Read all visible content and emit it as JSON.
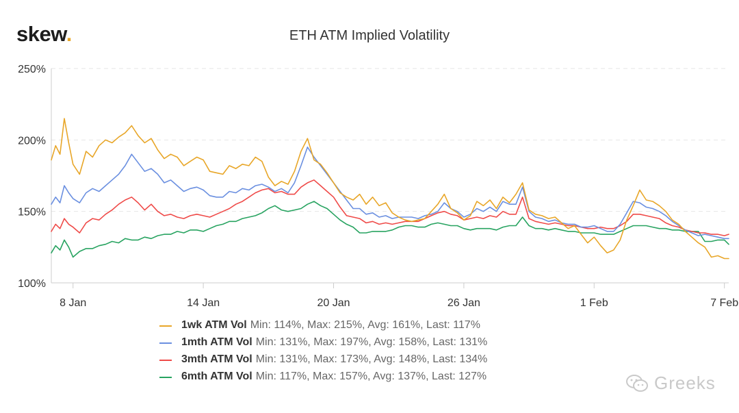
{
  "logo": {
    "text": "skew",
    "dot": "."
  },
  "watermark": {
    "text": "Greeks",
    "icon": "wechat-icon"
  },
  "chart_data": {
    "type": "line",
    "title": "ETH ATM Implied Volatility",
    "xlabel": "",
    "ylabel": "",
    "ylim": [
      100,
      250
    ],
    "yticks": [
      "100%",
      "150%",
      "200%",
      "250%"
    ],
    "ytick_values": [
      100,
      150,
      200,
      250
    ],
    "xticks": [
      "8 Jan",
      "14 Jan",
      "20 Jan",
      "26 Jan",
      "1 Feb",
      "7 Feb"
    ],
    "xtick_values": [
      0,
      6,
      12,
      18,
      24,
      30
    ],
    "xlim": [
      -1.0,
      30.2
    ],
    "x_unit": "days since 8 Jan",
    "grid": "horizontal dashed",
    "legend_position": "bottom",
    "series": [
      {
        "name": "1wk ATM Vol",
        "color": "#e8a628",
        "stats": "Min: 114%, Max: 215%, Avg: 161%, Last: 117%",
        "x": [
          -1.0,
          -0.8,
          -0.6,
          -0.4,
          -0.2,
          0.0,
          0.3,
          0.6,
          0.9,
          1.2,
          1.5,
          1.8,
          2.1,
          2.4,
          2.7,
          3.0,
          3.3,
          3.6,
          3.9,
          4.2,
          4.5,
          4.8,
          5.1,
          5.4,
          5.7,
          6.0,
          6.3,
          6.6,
          6.9,
          7.2,
          7.5,
          7.8,
          8.1,
          8.4,
          8.7,
          9.0,
          9.3,
          9.6,
          9.9,
          10.2,
          10.5,
          10.8,
          11.1,
          11.4,
          11.7,
          12.0,
          12.3,
          12.6,
          12.9,
          13.2,
          13.5,
          13.8,
          14.1,
          14.4,
          14.7,
          15.0,
          15.3,
          15.6,
          15.9,
          16.2,
          16.5,
          16.8,
          17.1,
          17.4,
          17.7,
          18.0,
          18.3,
          18.6,
          18.9,
          19.2,
          19.5,
          19.8,
          20.1,
          20.4,
          20.7,
          21.0,
          21.3,
          21.6,
          21.9,
          22.2,
          22.5,
          22.8,
          23.1,
          23.4,
          23.7,
          24.0,
          24.3,
          24.6,
          24.9,
          25.2,
          25.5,
          25.8,
          26.1,
          26.4,
          26.7,
          27.0,
          27.3,
          27.6,
          27.9,
          28.2,
          28.5,
          28.8,
          29.1,
          29.4,
          29.7,
          30.0,
          30.2
        ],
        "y": [
          186,
          196,
          190,
          215,
          198,
          183,
          176,
          192,
          188,
          196,
          200,
          198,
          202,
          205,
          210,
          203,
          198,
          201,
          193,
          187,
          190,
          188,
          182,
          185,
          188,
          186,
          178,
          177,
          176,
          182,
          180,
          183,
          182,
          188,
          185,
          174,
          168,
          171,
          169,
          178,
          192,
          201,
          186,
          183,
          177,
          170,
          163,
          160,
          158,
          162,
          155,
          160,
          154,
          156,
          149,
          146,
          144,
          143,
          144,
          145,
          150,
          155,
          162,
          152,
          149,
          144,
          147,
          157,
          154,
          158,
          152,
          160,
          156,
          162,
          170,
          151,
          148,
          147,
          145,
          146,
          142,
          138,
          140,
          134,
          128,
          132,
          126,
          121,
          123,
          130,
          144,
          154,
          165,
          158,
          157,
          154,
          150,
          144,
          141,
          136,
          132,
          128,
          125,
          118,
          119,
          117,
          117
        ]
      },
      {
        "name": "1mth ATM Vol",
        "color": "#6a8fe0",
        "stats": "Min: 131%, Max: 197%, Avg: 158%, Last: 131%",
        "x": [
          -1.0,
          -0.8,
          -0.6,
          -0.4,
          -0.2,
          0.0,
          0.3,
          0.6,
          0.9,
          1.2,
          1.5,
          1.8,
          2.1,
          2.4,
          2.7,
          3.0,
          3.3,
          3.6,
          3.9,
          4.2,
          4.5,
          4.8,
          5.1,
          5.4,
          5.7,
          6.0,
          6.3,
          6.6,
          6.9,
          7.2,
          7.5,
          7.8,
          8.1,
          8.4,
          8.7,
          9.0,
          9.3,
          9.6,
          9.9,
          10.2,
          10.5,
          10.8,
          11.1,
          11.4,
          11.7,
          12.0,
          12.3,
          12.6,
          12.9,
          13.2,
          13.5,
          13.8,
          14.1,
          14.4,
          14.7,
          15.0,
          15.3,
          15.6,
          15.9,
          16.2,
          16.5,
          16.8,
          17.1,
          17.4,
          17.7,
          18.0,
          18.3,
          18.6,
          18.9,
          19.2,
          19.5,
          19.8,
          20.1,
          20.4,
          20.7,
          21.0,
          21.3,
          21.6,
          21.9,
          22.2,
          22.5,
          22.8,
          23.1,
          23.4,
          23.7,
          24.0,
          24.3,
          24.6,
          24.9,
          25.2,
          25.5,
          25.8,
          26.1,
          26.4,
          26.7,
          27.0,
          27.3,
          27.6,
          27.9,
          28.2,
          28.5,
          28.8,
          29.1,
          29.4,
          29.7,
          30.0,
          30.2
        ],
        "y": [
          155,
          160,
          156,
          168,
          163,
          159,
          156,
          163,
          166,
          164,
          168,
          172,
          176,
          182,
          190,
          184,
          178,
          180,
          176,
          170,
          172,
          168,
          164,
          166,
          167,
          165,
          161,
          160,
          160,
          164,
          163,
          166,
          165,
          168,
          169,
          167,
          164,
          166,
          163,
          170,
          182,
          195,
          188,
          182,
          176,
          170,
          164,
          158,
          152,
          152,
          148,
          149,
          146,
          147,
          145,
          146,
          146,
          146,
          145,
          147,
          148,
          150,
          156,
          152,
          150,
          146,
          148,
          152,
          150,
          153,
          150,
          157,
          155,
          155,
          167,
          150,
          146,
          145,
          143,
          144,
          142,
          141,
          141,
          139,
          139,
          140,
          138,
          136,
          136,
          141,
          149,
          157,
          156,
          153,
          152,
          150,
          147,
          143,
          140,
          137,
          135,
          133,
          134,
          133,
          132,
          131,
          131
        ]
      },
      {
        "name": "3mth ATM Vol",
        "color": "#ef4a48",
        "stats": "Min: 131%, Max: 173%, Avg: 148%, Last: 134%",
        "x": [
          -1.0,
          -0.8,
          -0.6,
          -0.4,
          -0.2,
          0.0,
          0.3,
          0.6,
          0.9,
          1.2,
          1.5,
          1.8,
          2.1,
          2.4,
          2.7,
          3.0,
          3.3,
          3.6,
          3.9,
          4.2,
          4.5,
          4.8,
          5.1,
          5.4,
          5.7,
          6.0,
          6.3,
          6.6,
          6.9,
          7.2,
          7.5,
          7.8,
          8.1,
          8.4,
          8.7,
          9.0,
          9.3,
          9.6,
          9.9,
          10.2,
          10.5,
          10.8,
          11.1,
          11.4,
          11.7,
          12.0,
          12.3,
          12.6,
          12.9,
          13.2,
          13.5,
          13.8,
          14.1,
          14.4,
          14.7,
          15.0,
          15.3,
          15.6,
          15.9,
          16.2,
          16.5,
          16.8,
          17.1,
          17.4,
          17.7,
          18.0,
          18.3,
          18.6,
          18.9,
          19.2,
          19.5,
          19.8,
          20.1,
          20.4,
          20.7,
          21.0,
          21.3,
          21.6,
          21.9,
          22.2,
          22.5,
          22.8,
          23.1,
          23.4,
          23.7,
          24.0,
          24.3,
          24.6,
          24.9,
          25.2,
          25.5,
          25.8,
          26.1,
          26.4,
          26.7,
          27.0,
          27.3,
          27.6,
          27.9,
          28.2,
          28.5,
          28.8,
          29.1,
          29.4,
          29.7,
          30.0,
          30.2
        ],
        "y": [
          136,
          141,
          138,
          145,
          141,
          139,
          135,
          142,
          145,
          144,
          148,
          151,
          155,
          158,
          160,
          156,
          151,
          155,
          150,
          147,
          148,
          146,
          145,
          147,
          148,
          147,
          146,
          148,
          150,
          152,
          155,
          157,
          160,
          163,
          165,
          166,
          163,
          164,
          162,
          162,
          167,
          170,
          172,
          168,
          164,
          160,
          153,
          147,
          146,
          145,
          142,
          143,
          141,
          142,
          141,
          142,
          143,
          143,
          143,
          145,
          147,
          149,
          150,
          148,
          147,
          144,
          145,
          146,
          145,
          147,
          146,
          150,
          148,
          148,
          160,
          145,
          143,
          142,
          141,
          142,
          141,
          140,
          140,
          139,
          138,
          138,
          139,
          138,
          138,
          140,
          143,
          148,
          148,
          147,
          146,
          145,
          142,
          140,
          139,
          137,
          136,
          135,
          135,
          134,
          134,
          133,
          134
        ]
      },
      {
        "name": "6mth ATM Vol",
        "color": "#27a360",
        "stats": "Min: 117%, Max: 157%, Avg: 137%, Last: 127%",
        "x": [
          -1.0,
          -0.8,
          -0.6,
          -0.4,
          -0.2,
          0.0,
          0.3,
          0.6,
          0.9,
          1.2,
          1.5,
          1.8,
          2.1,
          2.4,
          2.7,
          3.0,
          3.3,
          3.6,
          3.9,
          4.2,
          4.5,
          4.8,
          5.1,
          5.4,
          5.7,
          6.0,
          6.3,
          6.6,
          6.9,
          7.2,
          7.5,
          7.8,
          8.1,
          8.4,
          8.7,
          9.0,
          9.3,
          9.6,
          9.9,
          10.2,
          10.5,
          10.8,
          11.1,
          11.4,
          11.7,
          12.0,
          12.3,
          12.6,
          12.9,
          13.2,
          13.5,
          13.8,
          14.1,
          14.4,
          14.7,
          15.0,
          15.3,
          15.6,
          15.9,
          16.2,
          16.5,
          16.8,
          17.1,
          17.4,
          17.7,
          18.0,
          18.3,
          18.6,
          18.9,
          19.2,
          19.5,
          19.8,
          20.1,
          20.4,
          20.7,
          21.0,
          21.3,
          21.6,
          21.9,
          22.2,
          22.5,
          22.8,
          23.1,
          23.4,
          23.7,
          24.0,
          24.3,
          24.6,
          24.9,
          25.2,
          25.5,
          25.8,
          26.1,
          26.4,
          26.7,
          27.0,
          27.3,
          27.6,
          27.9,
          28.2,
          28.5,
          28.8,
          29.1,
          29.4,
          29.7,
          30.0,
          30.2
        ],
        "y": [
          121,
          126,
          123,
          130,
          125,
          118,
          122,
          124,
          124,
          126,
          127,
          129,
          128,
          131,
          130,
          130,
          132,
          131,
          133,
          134,
          134,
          136,
          135,
          137,
          137,
          136,
          138,
          140,
          141,
          143,
          143,
          145,
          146,
          147,
          149,
          152,
          154,
          151,
          150,
          151,
          152,
          155,
          157,
          154,
          152,
          148,
          144,
          141,
          139,
          135,
          135,
          136,
          136,
          136,
          137,
          139,
          140,
          140,
          139,
          139,
          141,
          142,
          141,
          140,
          140,
          138,
          137,
          138,
          138,
          138,
          137,
          139,
          140,
          140,
          146,
          140,
          138,
          138,
          137,
          138,
          137,
          136,
          136,
          135,
          135,
          135,
          134,
          134,
          134,
          136,
          138,
          140,
          140,
          140,
          139,
          138,
          138,
          137,
          137,
          136,
          136,
          136,
          129,
          129,
          130,
          130,
          127
        ]
      }
    ]
  }
}
